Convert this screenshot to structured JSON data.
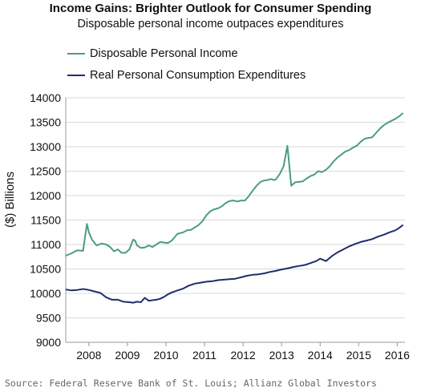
{
  "chart_data": {
    "type": "line",
    "title": "Income Gains: Brighter Outlook for Consumer Spending",
    "subtitle": "Disposable personal income outpaces expenditures",
    "ylabel": "($) Billions",
    "ylim": [
      9000,
      14000
    ],
    "yticks": [
      9000,
      9500,
      10000,
      10500,
      11000,
      11500,
      12000,
      12500,
      13000,
      13500,
      14000
    ],
    "xlim": [
      2007.4,
      2016.2
    ],
    "xticks": [
      2008,
      2009,
      2010,
      2011,
      2012,
      2013,
      2014,
      2015,
      2016
    ],
    "xtick_labels": [
      "2008",
      "2009",
      "2010",
      "2011",
      "2012",
      "2013",
      "2014",
      "2015",
      "2016"
    ],
    "grid": true,
    "legend_position": "top-left",
    "source": "Source: Federal Reserve Bank of St. Louis; Allianz Global Investors",
    "series": [
      {
        "name": "Disposable Personal Income",
        "color": "#4a9e7e",
        "x": [
          2007.4,
          2007.55,
          2007.7,
          2007.85,
          2007.95,
          2008.0,
          2008.08,
          2008.2,
          2008.33,
          2008.45,
          2008.55,
          2008.65,
          2008.75,
          2008.85,
          2008.95,
          2009.05,
          2009.15,
          2009.2,
          2009.25,
          2009.35,
          2009.45,
          2009.55,
          2009.65,
          2009.75,
          2009.85,
          2009.95,
          2010.05,
          2010.15,
          2010.3,
          2010.45,
          2010.55,
          2010.65,
          2010.75,
          2010.85,
          2010.95,
          2011.05,
          2011.15,
          2011.25,
          2011.35,
          2011.45,
          2011.55,
          2011.65,
          2011.75,
          2011.85,
          2011.95,
          2012.05,
          2012.15,
          2012.25,
          2012.35,
          2012.45,
          2012.55,
          2012.65,
          2012.72,
          2012.8,
          2012.85,
          2012.95,
          2013.05,
          2013.15,
          2013.25,
          2013.35,
          2013.45,
          2013.55,
          2013.65,
          2013.75,
          2013.85,
          2013.95,
          2014.05,
          2014.15,
          2014.25,
          2014.35,
          2014.45,
          2014.55,
          2014.65,
          2014.75,
          2014.85,
          2014.95,
          2015.05,
          2015.15,
          2015.25,
          2015.35,
          2015.45,
          2015.55,
          2015.65,
          2015.75,
          2015.85,
          2015.95,
          2016.05,
          2016.15
        ],
        "values": [
          10770,
          10820,
          10880,
          10870,
          11420,
          11250,
          11100,
          10980,
          11020,
          11000,
          10950,
          10860,
          10900,
          10830,
          10830,
          10900,
          11100,
          11080,
          10980,
          10930,
          10940,
          10980,
          10950,
          11000,
          11050,
          11040,
          11030,
          11080,
          11220,
          11250,
          11290,
          11300,
          11350,
          11400,
          11480,
          11600,
          11680,
          11720,
          11740,
          11780,
          11850,
          11890,
          11900,
          11880,
          11900,
          11900,
          11990,
          12100,
          12200,
          12280,
          12310,
          12320,
          12340,
          12320,
          12330,
          12440,
          12600,
          13020,
          12200,
          12270,
          12280,
          12290,
          12350,
          12400,
          12430,
          12500,
          12480,
          12530,
          12600,
          12700,
          12780,
          12840,
          12900,
          12930,
          12980,
          13020,
          13100,
          13160,
          13180,
          13190,
          13280,
          13370,
          13440,
          13490,
          13530,
          13570,
          13620,
          13690
        ]
      },
      {
        "name": "Real Personal Consumption Expenditures",
        "color": "#1f2d6e",
        "x": [
          2007.4,
          2007.55,
          2007.7,
          2007.85,
          2008.0,
          2008.15,
          2008.3,
          2008.45,
          2008.6,
          2008.75,
          2008.9,
          2009.05,
          2009.15,
          2009.25,
          2009.35,
          2009.45,
          2009.55,
          2009.65,
          2009.75,
          2009.85,
          2009.95,
          2010.05,
          2010.15,
          2010.3,
          2010.45,
          2010.6,
          2010.75,
          2010.9,
          2011.05,
          2011.2,
          2011.35,
          2011.5,
          2011.65,
          2011.8,
          2011.95,
          2012.1,
          2012.25,
          2012.4,
          2012.55,
          2012.7,
          2012.85,
          2013.0,
          2013.15,
          2013.3,
          2013.45,
          2013.6,
          2013.75,
          2013.9,
          2014.0,
          2014.15,
          2014.3,
          2014.45,
          2014.6,
          2014.75,
          2014.9,
          2015.05,
          2015.2,
          2015.35,
          2015.5,
          2015.65,
          2015.8,
          2015.95,
          2016.05,
          2016.15
        ],
        "values": [
          10080,
          10060,
          10070,
          10090,
          10070,
          10040,
          10010,
          9920,
          9870,
          9870,
          9830,
          9820,
          9810,
          9830,
          9820,
          9910,
          9850,
          9860,
          9870,
          9890,
          9930,
          9980,
          10020,
          10060,
          10100,
          10160,
          10200,
          10220,
          10240,
          10250,
          10270,
          10280,
          10290,
          10300,
          10330,
          10360,
          10380,
          10390,
          10410,
          10440,
          10460,
          10490,
          10510,
          10540,
          10560,
          10580,
          10620,
          10660,
          10710,
          10660,
          10760,
          10840,
          10900,
          10960,
          11010,
          11050,
          11080,
          11110,
          11160,
          11200,
          11250,
          11290,
          11340,
          11400
        ]
      }
    ]
  }
}
